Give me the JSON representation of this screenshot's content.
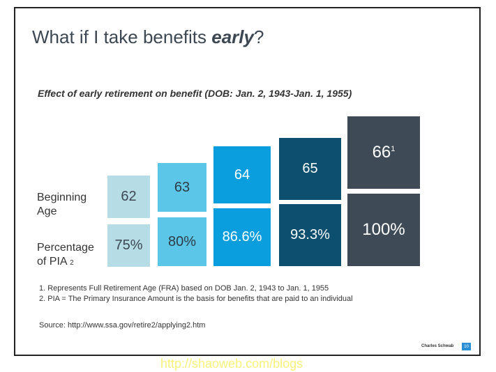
{
  "slide": {
    "title_pre": "What if I take benefits ",
    "title_em": "early",
    "title_post": "?",
    "subtitle": "Effect of early retirement on benefit (DOB: Jan. 2, 1943-Jan. 1, 1955)",
    "row_labels": {
      "age": [
        "Beginning",
        "Age"
      ],
      "pct_line1": "Percentage",
      "pct_line2": "of PIA",
      "pct_sub": "2"
    },
    "columns": [
      {
        "age": "62",
        "age_sup": "",
        "pct": "75%",
        "color": "#b6dde6",
        "text_color": "#3d4752"
      },
      {
        "age": "63",
        "age_sup": "",
        "pct": "80%",
        "color": "#5cc6e8",
        "text_color": "#2f3b46"
      },
      {
        "age": "64",
        "age_sup": "",
        "pct": "86.6%",
        "color": "#0a9ede",
        "text_color": "#ffffff"
      },
      {
        "age": "65",
        "age_sup": "",
        "pct": "93.3%",
        "color": "#0d4f6e",
        "text_color": "#ffffff"
      },
      {
        "age": "66",
        "age_sup": "1",
        "pct": "100%",
        "color": "#3e4b57",
        "text_color": "#ffffff"
      }
    ],
    "footnotes": [
      "1.  Represents Full Retirement Age (FRA) based on DOB Jan. 2, 1943 to Jan. 1, 1955",
      "2.  PIA = The Primary Insurance Amount is the basis for benefits that are paid to an individual"
    ],
    "source": "Source: http://www.ssa.gov/retire2/applying2.htm",
    "brand": "Charles Schwab",
    "page_number": "10"
  },
  "watermark": "http://shaoweb.com/blogs"
}
